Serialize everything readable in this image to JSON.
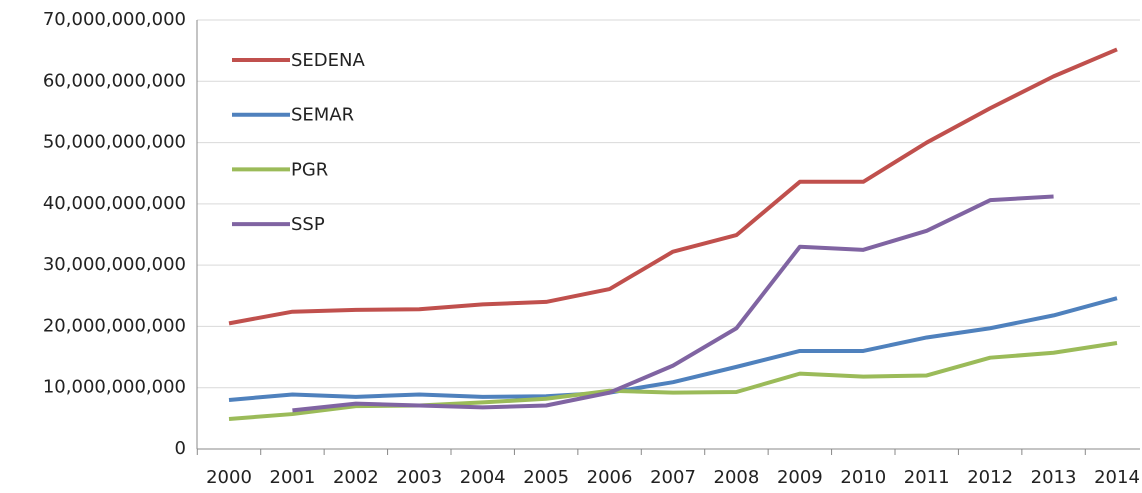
{
  "chart_data": {
    "type": "line",
    "categories": [
      "2000",
      "2001",
      "2002",
      "2003",
      "2004",
      "2005",
      "2006",
      "2007",
      "2008",
      "2009",
      "2010",
      "2011",
      "2012",
      "2013",
      "2014"
    ],
    "series": [
      {
        "name": "SEDENA",
        "color": "#c0504d",
        "values": [
          20500000000,
          22400000000,
          22700000000,
          22800000000,
          23600000000,
          24000000000,
          26100000000,
          32200000000,
          34900000000,
          43600000000,
          43600000000,
          50000000000,
          55600000000,
          60800000000,
          65200000000
        ]
      },
      {
        "name": "SEMAR",
        "color": "#4f81bd",
        "values": [
          8000000000,
          8900000000,
          8500000000,
          8900000000,
          8500000000,
          8600000000,
          9200000000,
          10900000000,
          13400000000,
          16000000000,
          16000000000,
          18200000000,
          19700000000,
          21800000000,
          24600000000
        ]
      },
      {
        "name": "PGR",
        "color": "#9bbb59",
        "values": [
          4900000000,
          5700000000,
          7000000000,
          7100000000,
          7600000000,
          8200000000,
          9500000000,
          9200000000,
          9300000000,
          12300000000,
          11800000000,
          12000000000,
          14900000000,
          15700000000,
          17300000000
        ]
      },
      {
        "name": "SSP",
        "color": "#8064a2",
        "values": [
          null,
          6300000000,
          7400000000,
          7100000000,
          6800000000,
          7100000000,
          9200000000,
          13600000000,
          19700000000,
          33000000000,
          32500000000,
          35600000000,
          40600000000,
          41200000000,
          null
        ]
      }
    ],
    "ylim": [
      0,
      70000000000
    ],
    "yticks": [
      0,
      {
        "value": 10000000000,
        "label": "10,000,000,000"
      },
      {
        "value": 20000000000,
        "label": "20,000,000,000"
      },
      {
        "value": 30000000000,
        "label": "30,000,000,000"
      },
      {
        "value": 40000000000,
        "label": "40,000,000,000"
      },
      {
        "value": 50000000000,
        "label": "50,000,000,000"
      },
      {
        "value": 60000000000,
        "label": "60,000,000,000"
      },
      {
        "value": 70000000000,
        "label": "70,000,000,000"
      }
    ],
    "grid": true,
    "legend": "upper left"
  }
}
